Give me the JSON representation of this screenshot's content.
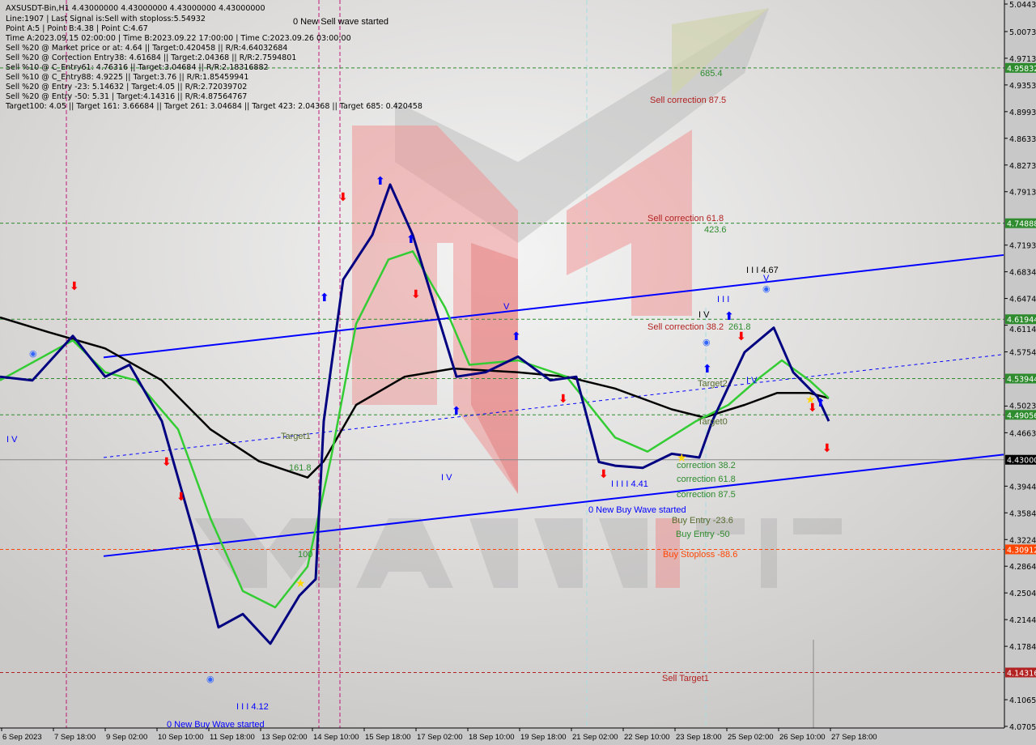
{
  "info_panel": {
    "lines": [
      "AXSUSDT-Bin,H1  4.43000000 4.43000000 4.43000000 4.43000000",
      "Line:1907 | Last Signal is:Sell with stoploss:5.54932",
      "Point A:5 | Point B:4.38 | Point C:4.67",
      "Time A:2023.09.15 02:00:00 | Time B:2023.09.22 17:00:00 | Time C:2023.09.26 03:00:00",
      "Sell %20 @ Market price or at: 4.64 || Target:0.420458 || R/R:4.64032684",
      "Sell %20 @ Correction Entry38: 4.61684 || Target:2.04368 || R/R:2.7594801",
      "Sell %10 @ C_Entry61: 4.76316 || Target:3.04684 || R/R:2.18316882",
      "Sell %10 @ C_Entry88: 4.9225 || Target:3.76 || R/R:1.85459941",
      "Sell %20 @ Entry -23: 5.14632 | Target:4.05 || R/R:2.72039702",
      "Sell %20 @ Entry -50: 5.31 | Target:4.14316 || R/R:4.87564767",
      "Target100: 4.05 || Target 161: 3.66684 || Target 261: 3.04684 || Target 423: 2.04368 || Target 685: 0.420458"
    ]
  },
  "watermark": "MARKETZ SITE",
  "annotations": {
    "new_sell_wave": "0 New Sell wave started",
    "new_buy_wave_1": "0 New Buy Wave started",
    "new_buy_wave_2": "0 New Buy Wave started",
    "t685": "685.4",
    "sell_corr_875": "Sell correction 87.5",
    "sell_corr_618": "Sell correction 61.8",
    "t423": "423.6",
    "sell_corr_382": "Sell correction 38.2",
    "t261": "261.8",
    "wave_467": "I I I 4.67",
    "wave_iii": "I I I",
    "wave_iv_1": "I V",
    "wave_iv_2": "I V",
    "wave_v_top": "V",
    "wave_v_left": "V",
    "wave_iv_left": "I V",
    "wave_iv_mid": "I V",
    "target2": "Target2",
    "target1": "Target1",
    "target0": "Target0",
    "t161": "161.8",
    "t100": "100",
    "corr_382": "correction 38.2",
    "corr_618": "correction 61.8",
    "corr_875": "correction 87.5",
    "wave_441": "I I I I 4.41",
    "buy_entry_236": "Buy Entry -23.6",
    "buy_entry_50": "Buy Entry -50",
    "buy_stoploss": "Buy Stoploss -88.6",
    "sell_target1": "Sell Target1",
    "wave_412": "I I I 4.12"
  },
  "chart_data": {
    "type": "line",
    "symbol": "AXSUSDT-Bin",
    "timeframe": "H1",
    "ylim": [
      4.07052,
      5.04438
    ],
    "grid": false,
    "current_price": 4.43,
    "yticks": [
      "5.04438",
      "5.00730",
      "4.97131",
      "4.93532",
      "4.89933",
      "4.86335",
      "4.82736",
      "4.79137",
      "4.71939",
      "4.68341",
      "4.64742",
      "4.61143",
      "4.57544",
      "4.50237",
      "4.46639",
      "4.39441",
      "4.35842",
      "4.32243",
      "4.28645",
      "4.25046",
      "4.21447",
      "4.17848",
      "4.10650",
      "4.07052"
    ],
    "xticks": [
      {
        "label": "6 Sep 2023",
        "t": "2023-09-06 09:00"
      },
      {
        "label": "7 Sep 18:00",
        "t": "2023-09-07 18:00"
      },
      {
        "label": "9 Sep 02:00",
        "t": "2023-09-09 02:00"
      },
      {
        "label": "10 Sep 10:00",
        "t": "2023-09-10 10:00"
      },
      {
        "label": "11 Sep 18:00",
        "t": "2023-09-11 18:00"
      },
      {
        "label": "13 Sep 02:00",
        "t": "2023-09-13 02:00"
      },
      {
        "label": "14 Sep 10:00",
        "t": "2023-09-14 10:00"
      },
      {
        "label": "15 Sep 18:00",
        "t": "2023-09-15 18:00"
      },
      {
        "label": "17 Sep 02:00",
        "t": "2023-09-17 02:00"
      },
      {
        "label": "18 Sep 10:00",
        "t": "2023-09-18 10:00"
      },
      {
        "label": "19 Sep 18:00",
        "t": "2023-09-19 18:00"
      },
      {
        "label": "21 Sep 02:00",
        "t": "2023-09-21 02:00"
      },
      {
        "label": "22 Sep 10:00",
        "t": "2023-09-22 10:00"
      },
      {
        "label": "23 Sep 18:00",
        "t": "2023-09-23 18:00"
      },
      {
        "label": "25 Sep 02:00",
        "t": "2023-09-25 02:00"
      },
      {
        "label": "26 Sep 10:00",
        "t": "2023-09-26 10:00"
      },
      {
        "label": "27 Sep 18:00",
        "t": "2023-09-27 18:00"
      }
    ],
    "levels": [
      {
        "price": "4.95832",
        "color": "#2e8b2e"
      },
      {
        "price": "4.74888",
        "color": "#2e8b2e"
      },
      {
        "price": "4.61944",
        "color": "#2e8b2e"
      },
      {
        "price": "4.53944",
        "color": "#2e8b2e"
      },
      {
        "price": "4.49056",
        "color": "#2e8b2e"
      },
      {
        "price": "4.43000",
        "color": "#000000"
      },
      {
        "price": "4.30912",
        "color": "#ff4500"
      },
      {
        "price": "4.14316",
        "color": "#b22222"
      }
    ],
    "trendlines": [
      {
        "color": "#0000ff",
        "style": "solid",
        "points": [
          [
            "2023-09-09 01:00",
            4.568
          ],
          [
            "2023-10-02 05:00",
            4.706
          ]
        ]
      },
      {
        "color": "#0000ff",
        "style": "solid",
        "points": [
          [
            "2023-09-09 01:00",
            4.3
          ],
          [
            "2023-10-02 05:00",
            4.437
          ]
        ]
      },
      {
        "color": "#0000ff",
        "style": "dashed",
        "points": [
          [
            "2023-09-09 01:00",
            4.433
          ],
          [
            "2023-10-02 05:00",
            4.572
          ]
        ]
      }
    ],
    "series": [
      {
        "color": "#000000",
        "width": 2.5,
        "points": [
          [
            "2023-09-06 09:00",
            4.622
          ],
          [
            "2023-09-07 15:00",
            4.602
          ],
          [
            "2023-09-09 02:00",
            4.58
          ],
          [
            "2023-09-10 13:00",
            4.537
          ],
          [
            "2023-09-11 19:00",
            4.471
          ],
          [
            "2023-09-13 01:00",
            4.428
          ],
          [
            "2023-09-14 07:00",
            4.406
          ],
          [
            "2023-09-14 17:00",
            4.428
          ],
          [
            "2023-09-15 13:00",
            4.504
          ],
          [
            "2023-09-16 19:00",
            4.542
          ],
          [
            "2023-09-18 01:00",
            4.553
          ],
          [
            "2023-09-19 17:00",
            4.548
          ],
          [
            "2023-09-20 23:00",
            4.542
          ],
          [
            "2023-09-22 05:00",
            4.526
          ],
          [
            "2023-09-23 16:00",
            4.498
          ],
          [
            "2023-09-24 12:00",
            4.487
          ],
          [
            "2023-09-25 13:00",
            4.504
          ],
          [
            "2023-09-26 09:00",
            4.52
          ],
          [
            "2023-09-27 05:00",
            4.52
          ],
          [
            "2023-09-27 17:00",
            4.513
          ]
        ]
      },
      {
        "color": "#33cc33",
        "width": 2.5,
        "points": [
          [
            "2023-09-06 09:00",
            4.537
          ],
          [
            "2023-09-08 06:00",
            4.591
          ],
          [
            "2023-09-09 02:00",
            4.548
          ],
          [
            "2023-09-09 21:00",
            4.537
          ],
          [
            "2023-09-10 23:00",
            4.471
          ],
          [
            "2023-09-11 19:00",
            4.351
          ],
          [
            "2023-09-12 15:00",
            4.253
          ],
          [
            "2023-09-13 11:00",
            4.231
          ],
          [
            "2023-09-14 07:00",
            4.286
          ],
          [
            "2023-09-14 22:00",
            4.438
          ],
          [
            "2023-09-15 13:00",
            4.613
          ],
          [
            "2023-09-16 09:00",
            4.7
          ],
          [
            "2023-09-17 00:00",
            4.711
          ],
          [
            "2023-09-17 20:00",
            4.635
          ],
          [
            "2023-09-18 11:00",
            4.558
          ],
          [
            "2023-09-19 17:00",
            4.564
          ],
          [
            "2023-09-20 23:00",
            4.542
          ],
          [
            "2023-09-22 05:00",
            4.46
          ],
          [
            "2023-09-23 01:00",
            4.441
          ],
          [
            "2023-09-24 07:00",
            4.482
          ],
          [
            "2023-09-25 03:00",
            4.504
          ],
          [
            "2023-09-25 23:00",
            4.542
          ],
          [
            "2023-09-26 12:00",
            4.564
          ],
          [
            "2023-09-27 05:00",
            4.537
          ],
          [
            "2023-09-27 17:00",
            4.513
          ]
        ]
      },
      {
        "color": "#000080",
        "width": 3,
        "points": [
          [
            "2023-09-06 09:00",
            4.542
          ],
          [
            "2023-09-07 05:00",
            4.537
          ],
          [
            "2023-09-08 06:00",
            4.597
          ],
          [
            "2023-09-09 02:00",
            4.542
          ],
          [
            "2023-09-09 17:00",
            4.558
          ],
          [
            "2023-09-10 13:00",
            4.482
          ],
          [
            "2023-09-11 09:00",
            4.329
          ],
          [
            "2023-09-12 00:00",
            4.204
          ],
          [
            "2023-09-12 15:00",
            4.222
          ],
          [
            "2023-09-13 08:00",
            4.182
          ],
          [
            "2023-09-14 02:00",
            4.247
          ],
          [
            "2023-09-14 12:00",
            4.269
          ],
          [
            "2023-09-14 17:00",
            4.482
          ],
          [
            "2023-09-15 05:00",
            4.673
          ],
          [
            "2023-09-15 23:00",
            4.733
          ],
          [
            "2023-09-16 10:00",
            4.801
          ],
          [
            "2023-09-17 00:00",
            4.733
          ],
          [
            "2023-09-17 17:00",
            4.613
          ],
          [
            "2023-09-18 03:00",
            4.542
          ],
          [
            "2023-09-18 21:00",
            4.548
          ],
          [
            "2023-09-19 17:00",
            4.569
          ],
          [
            "2023-09-20 13:00",
            4.537
          ],
          [
            "2023-09-21 05:00",
            4.542
          ],
          [
            "2023-09-21 19:00",
            4.427
          ],
          [
            "2023-09-22 05:00",
            4.422
          ],
          [
            "2023-09-22 22:00",
            4.419
          ],
          [
            "2023-09-23 16:00",
            4.438
          ],
          [
            "2023-09-24 09:00",
            4.433
          ],
          [
            "2023-09-24 17:00",
            4.482
          ],
          [
            "2023-09-25 13:00",
            4.575
          ],
          [
            "2023-09-26 07:00",
            4.608
          ],
          [
            "2023-09-26 19:00",
            4.548
          ],
          [
            "2023-09-27 10:00",
            4.515
          ],
          [
            "2023-09-27 17:00",
            4.482
          ]
        ]
      }
    ]
  }
}
